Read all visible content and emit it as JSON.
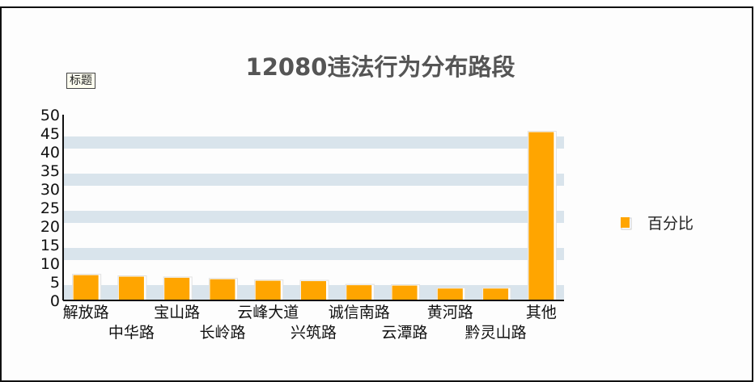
{
  "chart_data": {
    "type": "bar",
    "title": "12080违法行为分布路段",
    "tag": "标题",
    "categories": [
      "解放路",
      "中华路",
      "宝山路",
      "长岭路",
      "云峰大道",
      "兴筑路",
      "诚信南路",
      "云潭路",
      "黄河路",
      "黔灵山路",
      "其他"
    ],
    "series": [
      {
        "name": "百分比",
        "values": [
          6.8,
          6.4,
          6.1,
          5.7,
          5.3,
          5.2,
          4.1,
          4.0,
          3.2,
          3.2,
          45.3
        ],
        "color": "#FFA500"
      }
    ],
    "ylim": [
      0,
      50
    ],
    "yticks": [
      0,
      5,
      10,
      15,
      20,
      25,
      30,
      35,
      40,
      45,
      50
    ],
    "grid": "horizontal-bands",
    "band_color": "#D9E4EC",
    "legend_position": "right"
  }
}
